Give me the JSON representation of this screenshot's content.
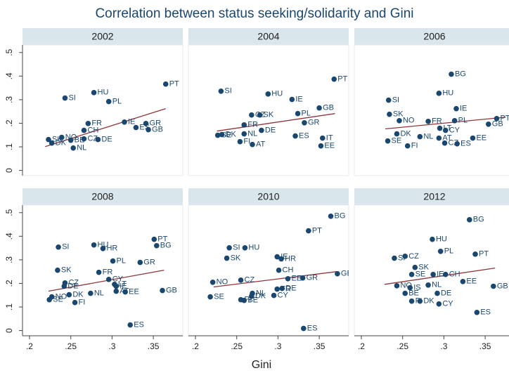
{
  "title": "Correlation between status seeking/solidarity and Gini",
  "x_label": "Gini",
  "xlim": [
    0.1915,
    0.3857
  ],
  "ylim": [
    -0.022,
    0.532
  ],
  "xticks": [
    {
      "value": 0.2,
      "label": ".2"
    },
    {
      "value": 0.25,
      "label": ".25"
    },
    {
      "value": 0.3,
      "label": ".3"
    },
    {
      "value": 0.35,
      "label": ".35"
    }
  ],
  "yticks": [
    0,
    {
      "value": 0.1,
      "label": ".1"
    },
    {
      "value": 0.2,
      "label": ".2"
    },
    {
      "value": 0.3,
      "label": ".3"
    },
    {
      "value": 0.4,
      "label": ".4"
    },
    {
      "value": 0.5,
      "label": ".5"
    }
  ],
  "chart_data": [
    {
      "type": "scatter",
      "title": "2002",
      "color": "#1a476f",
      "fit_color": "#90353b",
      "point_labels": [
        "PT",
        "HU",
        "SI",
        "PL",
        "FR",
        "GR",
        "CH",
        "IE",
        "ES",
        "GB",
        "NO",
        "SK",
        "DK",
        "BE",
        "NL",
        "CZ",
        "DE"
      ],
      "x": [
        0.365,
        0.278,
        0.243,
        0.296,
        0.271,
        0.341,
        0.266,
        0.315,
        0.329,
        0.344,
        0.239,
        0.223,
        0.227,
        0.25,
        0.253,
        0.266,
        0.283
      ],
      "values": [
        0.366,
        0.33,
        0.307,
        0.292,
        0.199,
        0.199,
        0.17,
        0.205,
        0.182,
        0.173,
        0.14,
        0.131,
        0.116,
        0.128,
        0.095,
        0.134,
        0.131
      ],
      "fit": {
        "x": [
          0.219,
          0.365
        ],
        "values": [
          0.101,
          0.262
        ]
      }
    },
    {
      "type": "scatter",
      "title": "2004",
      "color": "#1a476f",
      "fit_color": "#90353b",
      "point_labels": [
        "PT",
        "SI",
        "HU",
        "IE",
        "GB",
        "PL",
        "CZ",
        "SK",
        "GR",
        "FR",
        "DE",
        "NL",
        "ES",
        "IT",
        "EE",
        "SE",
        "DK",
        "AT",
        "FI"
      ],
      "x": [
        0.368,
        0.231,
        0.288,
        0.317,
        0.35,
        0.324,
        0.268,
        0.278,
        0.332,
        0.259,
        0.28,
        0.259,
        0.321,
        0.354,
        0.352,
        0.227,
        0.232,
        0.269,
        0.254
      ],
      "values": [
        0.387,
        0.336,
        0.324,
        0.301,
        0.265,
        0.241,
        0.235,
        0.235,
        0.202,
        0.193,
        0.17,
        0.155,
        0.146,
        0.137,
        0.104,
        0.149,
        0.152,
        0.11,
        0.122
      ],
      "fit": {
        "x": [
          0.226,
          0.369
        ],
        "values": [
          0.167,
          0.241
        ]
      }
    },
    {
      "type": "scatter",
      "title": "2006",
      "color": "#1a476f",
      "fit_color": "#90353b",
      "point_labels": [
        "BG",
        "HU",
        "SI",
        "IE",
        "SK",
        "PT",
        "NO",
        "FR",
        "PL",
        "GB",
        "LT",
        "CY",
        "DK",
        "NL",
        "AT",
        "EE",
        "SE",
        "CZ",
        "ES",
        "FI"
      ],
      "x": [
        0.309,
        0.294,
        0.233,
        0.315,
        0.234,
        0.364,
        0.246,
        0.281,
        0.313,
        0.354,
        0.295,
        0.302,
        0.243,
        0.271,
        0.294,
        0.335,
        0.232,
        0.301,
        0.316,
        0.256
      ],
      "values": [
        0.408,
        0.327,
        0.298,
        0.262,
        0.238,
        0.22,
        0.211,
        0.208,
        0.211,
        0.196,
        0.179,
        0.17,
        0.155,
        0.143,
        0.137,
        0.137,
        0.125,
        0.116,
        0.113,
        0.104
      ],
      "fit": {
        "x": [
          0.229,
          0.375
        ],
        "values": [
          0.176,
          0.226
        ]
      }
    },
    {
      "type": "scatter",
      "title": "2008",
      "color": "#1a476f",
      "fit_color": "#90353b",
      "point_labels": [
        "PT",
        "BG",
        "SI",
        "HU",
        "HR",
        "GR",
        "PL",
        "SK",
        "FR",
        "CY",
        "CZ",
        "DE",
        "LT",
        "IE",
        "ES",
        "NL",
        "DK",
        "EE",
        "AT",
        "GB",
        "NO",
        "SE",
        "FI"
      ],
      "x": [
        0.351,
        0.354,
        0.235,
        0.278,
        0.289,
        0.334,
        0.301,
        0.234,
        0.284,
        0.296,
        0.243,
        0.242,
        0.303,
        0.305,
        0.322,
        0.274,
        0.248,
        0.316,
        0.305,
        0.361,
        0.227,
        0.224,
        0.255
      ],
      "values": [
        0.387,
        0.36,
        0.354,
        0.363,
        0.348,
        0.289,
        0.295,
        0.256,
        0.247,
        0.217,
        0.202,
        0.188,
        0.196,
        0.188,
        0.024,
        0.158,
        0.152,
        0.164,
        0.167,
        0.17,
        0.143,
        0.131,
        0.119
      ],
      "fit": {
        "x": [
          0.223,
          0.363
        ],
        "values": [
          0.167,
          0.256
        ]
      }
    },
    {
      "type": "scatter",
      "title": "2010",
      "color": "#1a476f",
      "fit_color": "#90353b",
      "point_labels": [
        "BG",
        "PT",
        "SI",
        "HU",
        "SK",
        "IE",
        "HR",
        "CH",
        "CZ",
        "EE",
        "GR",
        "GB",
        "NO",
        "DE",
        "FR",
        "NL",
        "DK",
        "CY",
        "SE",
        "FI",
        "BE",
        "ES"
      ],
      "x": [
        0.364,
        0.337,
        0.241,
        0.26,
        0.238,
        0.299,
        0.304,
        0.301,
        0.255,
        0.312,
        0.33,
        0.372,
        0.221,
        0.305,
        0.299,
        0.269,
        0.268,
        0.295,
        0.218,
        0.255,
        0.259,
        0.331
      ],
      "values": [
        0.485,
        0.423,
        0.351,
        0.351,
        0.307,
        0.313,
        0.304,
        0.256,
        0.214,
        0.22,
        0.223,
        0.241,
        0.205,
        0.179,
        0.176,
        0.158,
        0.146,
        0.149,
        0.143,
        0.131,
        0.128,
        0.009
      ],
      "fit": {
        "x": [
          0.222,
          0.371
        ],
        "values": [
          0.185,
          0.25
        ]
      }
    },
    {
      "type": "scatter",
      "title": "2012",
      "color": "#1a476f",
      "fit_color": "#90353b",
      "point_labels": [
        "BG",
        "HU",
        "PL",
        "PT",
        "SI",
        "CZ",
        "SK",
        "SE",
        "IE",
        "CH",
        "EE",
        "NO",
        "IS",
        "NL",
        "GB",
        "BE",
        "DE",
        "FI",
        "DK",
        "CY",
        "ES"
      ],
      "x": [
        0.331,
        0.286,
        0.296,
        0.338,
        0.24,
        0.253,
        0.265,
        0.261,
        0.287,
        0.302,
        0.323,
        0.243,
        0.259,
        0.281,
        0.36,
        0.253,
        0.292,
        0.261,
        0.271,
        0.294,
        0.34
      ],
      "values": [
        0.47,
        0.387,
        0.336,
        0.324,
        0.307,
        0.315,
        0.268,
        0.238,
        0.238,
        0.238,
        0.208,
        0.19,
        0.182,
        0.193,
        0.188,
        0.158,
        0.158,
        0.125,
        0.125,
        0.113,
        0.077
      ],
      "fit": {
        "x": [
          0.228,
          0.362
        ],
        "values": [
          0.196,
          0.265
        ]
      }
    }
  ]
}
